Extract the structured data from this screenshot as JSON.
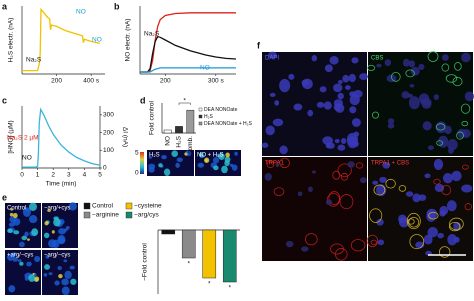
{
  "panel_labels": [
    "a",
    "b",
    "c",
    "d",
    "e",
    "f"
  ],
  "chart_data": [
    {
      "type": "line",
      "ylabel": "H₂S electr. (nA)",
      "xlim": [
        0,
        480
      ],
      "ylim": [
        0,
        10
      ],
      "xticks": [
        200,
        {
          "value": 400,
          "label": "400 s"
        }
      ],
      "x": [
        0,
        90,
        100,
        105,
        110,
        120,
        150,
        160,
        165,
        170,
        200,
        250,
        300,
        340,
        350,
        355,
        360,
        400,
        450
      ],
      "series": [
        {
          "color": "#f2c200",
          "values": [
            0.5,
            0.5,
            1.5,
            3,
            9.5,
            9.2,
            8.3,
            8.1,
            6.5,
            7.2,
            7,
            6.4,
            6,
            5.7,
            5.6,
            4.6,
            5.1,
            4.8,
            4.5
          ]
        }
      ],
      "annotations": [
        "Na₂S",
        "NO",
        "NO"
      ],
      "annotation_colors": [
        "#111111",
        "#1a9ad6",
        "#1a9ad6"
      ]
    },
    {
      "type": "line",
      "ylabel": "NO electr. (nA)",
      "xlim": [
        150,
        340
      ],
      "ylim": [
        0,
        10
      ],
      "xticks": [
        200,
        {
          "value": 300,
          "label": "300 s"
        }
      ],
      "x": [
        150,
        165,
        170,
        175,
        180,
        185,
        190,
        200,
        220,
        250,
        280,
        300,
        320,
        340
      ],
      "series": [
        {
          "color": "#e0201c",
          "values": [
            0.3,
            0.3,
            0.5,
            2,
            5,
            7,
            8,
            8.6,
            8.9,
            9,
            9,
            9,
            9,
            9
          ]
        },
        {
          "color": "#111111",
          "values": [
            0.3,
            0.3,
            0.8,
            3,
            4.8,
            5.5,
            5.4,
            5,
            4.2,
            3.4,
            2.8,
            2.5,
            2.3,
            2.2
          ]
        },
        {
          "color": "#1a9ad6",
          "values": [
            0.3,
            0.3,
            0.3,
            0.5,
            0.7,
            0.8,
            0.9,
            0.9,
            0.9,
            0.9,
            0.9,
            0.9,
            0.9,
            0.9
          ]
        }
      ],
      "annotations": [
        "Na₂S",
        "NO"
      ],
      "annotation_colors": [
        "#111111",
        "#1a9ad6"
      ]
    },
    {
      "type": "line",
      "ylabel": "[HNO] (µM)",
      "y2label": "ΔI (nA)",
      "xlabel": "Time (min)",
      "xlim": [
        0,
        5
      ],
      "y2lim": [
        0,
        350
      ],
      "xticks": [
        0,
        1,
        2,
        3,
        4,
        5
      ],
      "y2ticks": [
        0,
        100,
        200,
        300
      ],
      "x": [
        0,
        0.9,
        1.0,
        1.05,
        1.1,
        1.2,
        1.4,
        1.7,
        2,
        2.5,
        3,
        3.5,
        4,
        4.5,
        5
      ],
      "series": [
        {
          "color": "#3ab4dc",
          "axis": "y2",
          "values": [
            5,
            5,
            10,
            80,
            250,
            330,
            300,
            240,
            190,
            130,
            90,
            60,
            40,
            25,
            15
          ]
        }
      ],
      "annotations": [
        "Na₂S 2 µM",
        "NO"
      ],
      "annotation_colors": [
        "#e0201c",
        "#111111"
      ]
    },
    {
      "type": "bar",
      "ylabel": "Fold control",
      "ylim": [
        0,
        5
      ],
      "categories": [
        "NO",
        "H₂S",
        "comb."
      ],
      "values": [
        0.5,
        1.1,
        3.8
      ],
      "colors": [
        "#ffffff",
        "#333333",
        "#9a9a9a"
      ],
      "legend": [
        "DEA NONOate",
        "H₂S",
        "DEA NONOate + H₂S"
      ],
      "annotations": [
        "*"
      ]
    },
    {
      "type": "bar",
      "ylabel": "−Fold control",
      "ylim": [
        -0.8,
        0
      ],
      "categories": [
        "Control",
        "−arginine",
        "−cysteine",
        "−arg/cys"
      ],
      "values": [
        -0.05,
        -0.35,
        -0.6,
        -0.65
      ],
      "colors": [
        "#111111",
        "#8a8a8a",
        "#f2c200",
        "#1a8a6e"
      ],
      "annotations": [
        "*",
        "*",
        "*"
      ]
    }
  ],
  "images": {
    "d": [
      "H₂S",
      "NO + H₂S"
    ],
    "d_scale": [
      "5",
      "0"
    ],
    "e": [
      "Control",
      "−arg/+cys",
      "+arg/−cys",
      "−arg/−cys"
    ],
    "f": [
      "DAPI",
      "CBS",
      "TRPA1",
      "TRPA1 + CBS"
    ]
  }
}
